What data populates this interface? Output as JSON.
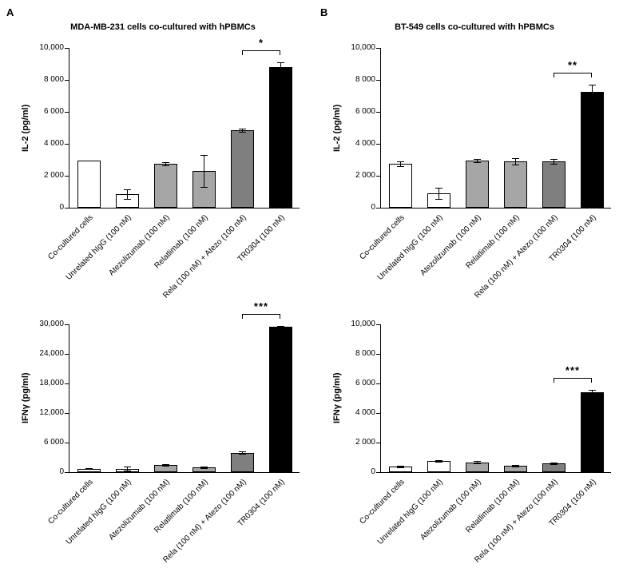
{
  "figure": {
    "panels": [
      {
        "letter": "A"
      },
      {
        "letter": "B"
      }
    ]
  },
  "chart_data": [
    {
      "type": "bar",
      "panel": "A",
      "title": "MDA-MB-231 cells co-cultured with hPBMCs",
      "xlabel": "",
      "ylabel": "IL-2 (pg/ml)",
      "categories": [
        "Co-cultured cells",
        "Unrelated hIgG (100 nM)",
        "Atezolizumab (100 nM)",
        "Relatlimab (100 nM)",
        "Rela (100 nM) + Atezo (100 nM)",
        "TR0304 (100 nM)"
      ],
      "values": [
        2950,
        850,
        2750,
        2300,
        4850,
        8800
      ],
      "errors": [
        0,
        300,
        100,
        1000,
        120,
        300
      ],
      "ylim": [
        0,
        10000
      ],
      "ytick_values": [
        0,
        2000,
        4000,
        6000,
        8000,
        10000
      ],
      "ytick_labels": [
        "0",
        "2 000",
        "4 000",
        "6 000",
        "8 000",
        "10,000"
      ],
      "colors": [
        "#ffffff",
        "#ffffff",
        "#a6a6a6",
        "#a6a6a6",
        "#7f7f7f",
        "#000000"
      ],
      "grid": false,
      "legend": "none",
      "significance": {
        "from_index": 4,
        "to_index": 5,
        "label": "*"
      }
    },
    {
      "type": "bar",
      "panel": "B",
      "title": "BT-549 cells co-cultured with hPBMCs",
      "xlabel": "",
      "ylabel": "IL-2 (pg/ml)",
      "categories": [
        "Co-cultured cells",
        "Unrelated hIgG (100 nM)",
        "Atezolizumab (100 nM)",
        "Relatlimab (100 nM)",
        "Rela (100 nM) + Atezo (100 nM)",
        "TR0304 (100 nM)"
      ],
      "values": [
        2750,
        900,
        2950,
        2900,
        2900,
        7250
      ],
      "errors": [
        150,
        350,
        80,
        200,
        150,
        450
      ],
      "ylim": [
        0,
        10000
      ],
      "ytick_values": [
        0,
        2000,
        4000,
        6000,
        8000,
        10000
      ],
      "ytick_labels": [
        "0",
        "2 000",
        "4 000",
        "6 000",
        "8 000",
        "10,000"
      ],
      "colors": [
        "#ffffff",
        "#ffffff",
        "#a6a6a6",
        "#a6a6a6",
        "#7f7f7f",
        "#000000"
      ],
      "grid": false,
      "legend": "none",
      "significance": {
        "from_index": 4,
        "to_index": 5,
        "label": "**"
      }
    },
    {
      "type": "bar",
      "panel": "A",
      "title": "",
      "xlabel": "",
      "ylabel": "IFNγ (pg/ml)",
      "categories": [
        "Co-cultured cells",
        "Unrelated hIgG (100 nM)",
        "Atezolizumab (100 nM)",
        "Relatlimab (100 nM)",
        "Rela (100 nM) + Atezo (100 nM)",
        "TR0304 (100 nM)"
      ],
      "values": [
        700,
        700,
        1500,
        1000,
        3900,
        29500
      ],
      "errors": [
        100,
        450,
        150,
        120,
        250,
        250
      ],
      "ylim": [
        0,
        30000
      ],
      "ytick_values": [
        0,
        6000,
        12000,
        18000,
        24000,
        30000
      ],
      "ytick_labels": [
        "0",
        "6 000",
        "12,000",
        "18,000",
        "24,000",
        "30,000"
      ],
      "colors": [
        "#ffffff",
        "#ffffff",
        "#a6a6a6",
        "#a6a6a6",
        "#7f7f7f",
        "#000000"
      ],
      "grid": false,
      "legend": "none",
      "significance": {
        "from_index": 4,
        "to_index": 5,
        "label": "***"
      }
    },
    {
      "type": "bar",
      "panel": "B",
      "title": "",
      "xlabel": "",
      "ylabel": "IFNγ  (pg/ml)",
      "categories": [
        "Co-cultured cells",
        "Unrelated hIgG (100 nM)",
        "Atezolizumab (100 nM)",
        "Relatlimab (100 nM)",
        "Rela (100 nM) + Atezo (100 nM)",
        "TR0304 (100 nM)"
      ],
      "values": [
        400,
        750,
        650,
        450,
        600,
        5400
      ],
      "errors": [
        50,
        60,
        80,
        60,
        70,
        150
      ],
      "ylim": [
        0,
        10000
      ],
      "ytick_values": [
        0,
        2000,
        4000,
        6000,
        8000,
        10000
      ],
      "ytick_labels": [
        "0",
        "2 000",
        "4 000",
        "6 000",
        "8 000",
        "10,000"
      ],
      "colors": [
        "#ffffff",
        "#ffffff",
        "#a6a6a6",
        "#a6a6a6",
        "#7f7f7f",
        "#000000"
      ],
      "grid": false,
      "legend": "none",
      "significance": {
        "from_index": 4,
        "to_index": 5,
        "label": "***"
      }
    }
  ]
}
